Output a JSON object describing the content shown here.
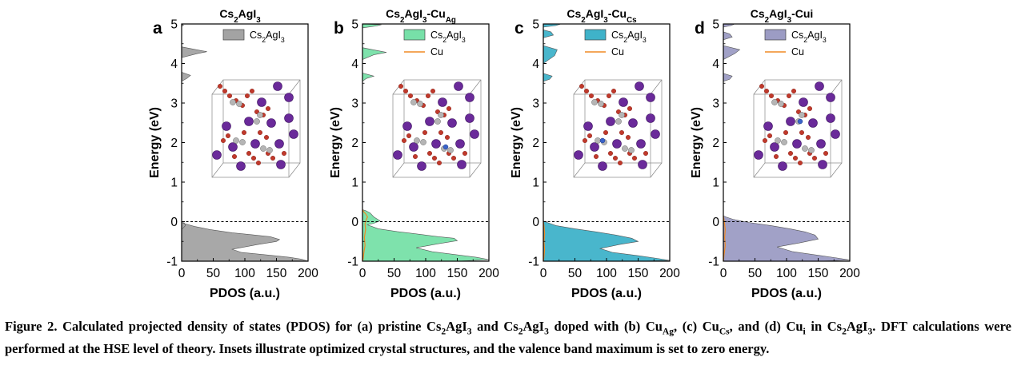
{
  "figure": {
    "panels": [
      {
        "letter": "a",
        "title": [
          "Cs",
          {
            "sub": "2"
          },
          "AgI",
          {
            "sub": "3"
          }
        ],
        "legend": [
          {
            "label": [
              "Cs",
              {
                "sub": "2"
              },
              "AgI",
              {
                "sub": "3"
              }
            ],
            "kind": "box"
          }
        ]
      },
      {
        "letter": "b",
        "title": [
          "Cs",
          {
            "sub": "2"
          },
          "AgI",
          {
            "sub": "3"
          },
          "-Cu",
          {
            "sub": "Ag"
          }
        ],
        "legend": [
          {
            "label": [
              "Cs",
              {
                "sub": "2"
              },
              "AgI",
              {
                "sub": "3"
              }
            ],
            "kind": "box"
          },
          {
            "label": [
              "Cu"
            ],
            "kind": "line"
          }
        ]
      },
      {
        "letter": "c",
        "title": [
          "Cs",
          {
            "sub": "2"
          },
          "AgI",
          {
            "sub": "3"
          },
          "-Cu",
          {
            "sub": "Cs"
          }
        ],
        "legend": [
          {
            "label": [
              "Cs",
              {
                "sub": "2"
              },
              "AgI",
              {
                "sub": "3"
              }
            ],
            "kind": "box"
          },
          {
            "label": [
              "Cu"
            ],
            "kind": "line"
          }
        ]
      },
      {
        "letter": "d",
        "title": [
          "Cs",
          {
            "sub": "2"
          },
          "AgI",
          {
            "sub": "3"
          },
          "-Cui"
        ],
        "legend": [
          {
            "label": [
              "Cs",
              {
                "sub": "2"
              },
              "AgI",
              {
                "sub": "3"
              }
            ],
            "kind": "box"
          },
          {
            "label": [
              "Cu"
            ],
            "kind": "line"
          }
        ]
      }
    ]
  },
  "chart_data": [
    {
      "type": "area",
      "panel": "a",
      "xlabel": "PDOS (a.u.)",
      "ylabel": "Energy (eV)",
      "xlim": [
        0,
        200
      ],
      "ylim": [
        -1,
        5
      ],
      "xticks": [
        0,
        50,
        100,
        150,
        200
      ],
      "yticks": [
        -1,
        0,
        1,
        2,
        3,
        4,
        5
      ],
      "reference_line": {
        "y": 0,
        "style": "dashed"
      },
      "inset": "optimized crystal structure",
      "colors": {
        "main": "#a3a3a3",
        "cu": "#f08a24"
      },
      "series": [
        {
          "name": "Cs2AgI3",
          "x": [
            0,
            0,
            4,
            6,
            0,
            0,
            8,
            14,
            0,
            0,
            25,
            40,
            0,
            0,
            3,
            0,
            0,
            5,
            20,
            45,
            80,
            110,
            140,
            155,
            150,
            120,
            80,
            95,
            140,
            170,
            190,
            200,
            140
          ],
          "y": [
            -1.0,
            -0.02,
            -0.03,
            -0.1,
            -0.2,
            3.55,
            3.62,
            3.7,
            3.78,
            4.15,
            4.25,
            4.3,
            4.42,
            4.94,
            4.97,
            5.0,
            -0.02,
            -0.05,
            -0.12,
            -0.2,
            -0.28,
            -0.33,
            -0.38,
            -0.45,
            -0.5,
            -0.58,
            -0.7,
            -0.78,
            -0.85,
            -0.9,
            -0.95,
            -1.0,
            -1.0
          ]
        }
      ]
    },
    {
      "type": "area",
      "panel": "b",
      "xlabel": "PDOS (a.u.)",
      "ylabel": "Energy (eV)",
      "xlim": [
        0,
        200
      ],
      "ylim": [
        -1,
        5
      ],
      "xticks": [
        0,
        50,
        100,
        150,
        200
      ],
      "yticks": [
        -1,
        0,
        1,
        2,
        3,
        4,
        5
      ],
      "reference_line": {
        "y": 0,
        "style": "dashed"
      },
      "inset": "optimized crystal structure",
      "colors": {
        "main": "#77e0a8",
        "cu": "#f08a24"
      },
      "series": [
        {
          "name": "Cs2AgI3",
          "x": [
            0,
            0,
            6,
            18,
            0,
            0,
            18,
            38,
            0,
            0,
            22,
            30,
            0,
            0,
            5,
            12,
            18,
            28,
            18,
            8,
            25,
            55,
            90,
            120,
            145,
            150,
            120,
            85,
            110,
            150,
            180,
            200,
            150,
            0
          ],
          "y": [
            -1.0,
            3.55,
            3.62,
            3.68,
            3.76,
            4.1,
            4.22,
            4.28,
            4.4,
            4.9,
            4.95,
            4.98,
            5.0,
            0.3,
            0.28,
            0.22,
            0.12,
            0.02,
            -0.04,
            -0.08,
            -0.18,
            -0.25,
            -0.32,
            -0.38,
            -0.42,
            -0.48,
            -0.56,
            -0.66,
            -0.76,
            -0.84,
            -0.9,
            -0.96,
            -1.0,
            -1.0
          ]
        },
        {
          "name": "Cu",
          "x": [
            0,
            2,
            5,
            8,
            6,
            4,
            5,
            3,
            4,
            2,
            1,
            0
          ],
          "y": [
            0.3,
            0.25,
            0.2,
            0.12,
            0.05,
            -0.05,
            -0.2,
            -0.4,
            -0.6,
            -0.8,
            -0.95,
            -1.0
          ]
        }
      ]
    },
    {
      "type": "area",
      "panel": "c",
      "xlabel": "PDOS (a.u.)",
      "ylabel": "Energy (eV)",
      "xlim": [
        0,
        200
      ],
      "ylim": [
        -1,
        5
      ],
      "xticks": [
        0,
        50,
        100,
        150,
        200
      ],
      "yticks": [
        -1,
        0,
        1,
        2,
        3,
        4,
        5
      ],
      "reference_line": {
        "y": 0,
        "style": "dashed"
      },
      "inset": "optimized crystal structure",
      "colors": {
        "main": "#3fb2c9",
        "cu": "#f08a24"
      },
      "series": [
        {
          "name": "Cs2AgI3",
          "x": [
            0,
            0,
            10,
            14,
            0,
            0,
            18,
            22,
            0,
            0,
            16,
            12,
            0,
            0,
            20,
            28,
            0,
            0,
            6,
            20,
            50,
            85,
            115,
            140,
            150,
            120,
            90,
            110,
            150,
            180,
            200,
            150,
            0
          ],
          "y": [
            -1.0,
            3.55,
            3.6,
            3.68,
            3.75,
            4.0,
            4.2,
            4.35,
            4.45,
            4.65,
            4.72,
            4.8,
            4.85,
            4.92,
            4.96,
            5.0,
            5.0,
            0.02,
            -0.02,
            -0.1,
            -0.18,
            -0.26,
            -0.34,
            -0.42,
            -0.5,
            -0.58,
            -0.68,
            -0.78,
            -0.86,
            -0.93,
            -0.98,
            -1.0,
            -1.0
          ]
        },
        {
          "name": "Cu",
          "x": [
            0,
            1,
            2,
            1,
            2,
            1,
            0
          ],
          "y": [
            0.0,
            -0.1,
            -0.3,
            -0.5,
            -0.7,
            -0.9,
            -1.0
          ]
        }
      ]
    },
    {
      "type": "area",
      "panel": "d",
      "xlabel": "PDOS (a.u.)",
      "ylabel": "Energy (eV)",
      "xlim": [
        0,
        200
      ],
      "ylim": [
        -1,
        5
      ],
      "xticks": [
        0,
        50,
        100,
        150,
        200
      ],
      "yticks": [
        -1,
        0,
        1,
        2,
        3,
        4,
        5
      ],
      "reference_line": {
        "y": 0,
        "style": "dashed"
      },
      "inset": "optimized crystal structure",
      "colors": {
        "main": "#9c9cc4",
        "cu": "#f08a24"
      },
      "series": [
        {
          "name": "Cs2AgI3",
          "x": [
            0,
            0,
            10,
            14,
            0,
            0,
            18,
            26,
            0,
            0,
            14,
            10,
            0,
            0,
            12,
            18,
            0,
            0,
            4,
            15,
            40,
            75,
            105,
            130,
            145,
            150,
            120,
            85,
            110,
            150,
            180,
            200,
            150,
            0
          ],
          "y": [
            -1.0,
            3.55,
            3.6,
            3.68,
            3.75,
            4.1,
            4.25,
            4.35,
            4.45,
            4.6,
            4.67,
            4.75,
            4.8,
            4.92,
            4.96,
            5.0,
            5.0,
            0.15,
            0.12,
            0.06,
            -0.02,
            -0.1,
            -0.18,
            -0.26,
            -0.34,
            -0.44,
            -0.54,
            -0.64,
            -0.76,
            -0.85,
            -0.92,
            -0.97,
            -1.0,
            -1.0
          ]
        },
        {
          "name": "Cu",
          "x": [
            0,
            1,
            3,
            2,
            3,
            1,
            0
          ],
          "y": [
            0.15,
            0.05,
            -0.2,
            -0.4,
            -0.6,
            -0.85,
            -1.0
          ]
        }
      ]
    }
  ],
  "caption": {
    "label": "Figure 2.",
    "parts": [
      " Calculated projected density of states (PDOS) for (a) pristine Cs",
      {
        "sub": "2"
      },
      "AgI",
      {
        "sub": "3"
      },
      " and Cs",
      {
        "sub": "2"
      },
      "AgI",
      {
        "sub": "3"
      },
      " doped with (b) Cu",
      {
        "sub": "Ag"
      },
      ", (c) Cu",
      {
        "sub": "Cs"
      },
      ", and (d) Cu",
      {
        "sub": "i"
      },
      " in Cs",
      {
        "sub": "2"
      },
      "AgI",
      {
        "sub": "3"
      },
      ". DFT calculations were performed at the HSE level of theory. Insets illustrate optimized crystal structures, and the valence band maximum is set to zero energy."
    ]
  }
}
